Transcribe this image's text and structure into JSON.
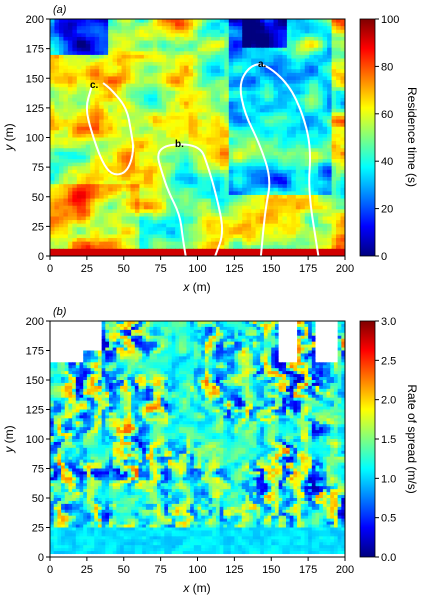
{
  "figure": {
    "colormap": [
      "#00007f",
      "#0000ff",
      "#007fff",
      "#00ffff",
      "#7fff7f",
      "#ffff00",
      "#ff7f00",
      "#ff0000",
      "#7f0000"
    ]
  },
  "chart_data": [
    {
      "type": "heatmap",
      "panel_label": "(a)",
      "xlabel_var": "x",
      "xlabel_unit": "(m)",
      "ylabel_var": "y",
      "ylabel_unit": "(m)",
      "xlim": [
        0,
        200
      ],
      "ylim": [
        0,
        200
      ],
      "xticks": [
        "0",
        "25",
        "50",
        "75",
        "100",
        "125",
        "150",
        "175",
        "200"
      ],
      "yticks": [
        "0",
        "25",
        "50",
        "75",
        "100",
        "125",
        "150",
        "175",
        "200"
      ],
      "colorbar": {
        "label": "Residence time  (s)",
        "range": [
          0,
          100
        ],
        "ticks": [
          "0",
          "20",
          "40",
          "60",
          "80",
          "100"
        ]
      },
      "overlay_paths": [
        {
          "label": "a",
          "points": [
            [
              143,
              0
            ],
            [
              146,
              40
            ],
            [
              150,
              65
            ],
            [
              142,
              95
            ],
            [
              132,
              120
            ],
            [
              128,
              145
            ],
            [
              135,
              160
            ],
            [
              145,
              163
            ],
            [
              162,
              145
            ],
            [
              172,
              118
            ],
            [
              177,
              90
            ],
            [
              175,
              55
            ],
            [
              182,
              0
            ]
          ]
        },
        {
          "label": "b",
          "points": [
            [
              92,
              0
            ],
            [
              90,
              15
            ],
            [
              88,
              35
            ],
            [
              80,
              55
            ],
            [
              76,
              70
            ],
            [
              72,
              88
            ],
            [
              82,
              95
            ],
            [
              102,
              93
            ],
            [
              107,
              76
            ],
            [
              113,
              50
            ],
            [
              118,
              20
            ],
            [
              112,
              0
            ]
          ]
        },
        {
          "label": "c",
          "points": [
            [
              28,
              142
            ],
            [
              24,
              125
            ],
            [
              28,
              105
            ],
            [
              35,
              80
            ],
            [
              42,
              68
            ],
            [
              52,
              70
            ],
            [
              57,
              88
            ],
            [
              55,
              105
            ],
            [
              52,
              125
            ],
            [
              42,
              140
            ],
            [
              36,
              146
            ]
          ]
        }
      ]
    },
    {
      "type": "heatmap",
      "panel_label": "(b)",
      "xlabel_var": "x",
      "xlabel_unit": "(m)",
      "ylabel_var": "y",
      "ylabel_unit": "(m)",
      "xlim": [
        0,
        200
      ],
      "ylim": [
        0,
        200
      ],
      "xticks": [
        "0",
        "25",
        "50",
        "75",
        "100",
        "125",
        "150",
        "175",
        "200"
      ],
      "yticks": [
        "0",
        "25",
        "50",
        "75",
        "100",
        "125",
        "150",
        "175",
        "200"
      ],
      "colorbar": {
        "label": "Rate of spread  (m/s)",
        "range": [
          0,
          3
        ],
        "ticks": [
          "0.0",
          "0.5",
          "1.0",
          "1.5",
          "2.0",
          "2.5",
          "3.0"
        ]
      }
    }
  ]
}
